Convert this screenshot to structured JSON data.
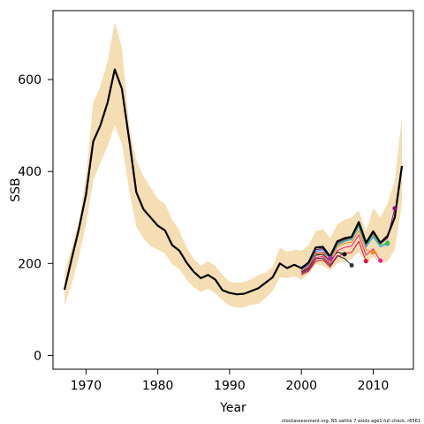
{
  "chart_data": {
    "type": "line",
    "xlabel": "Year",
    "ylabel": "SSB",
    "xlim": [
      1965.4,
      2015.6
    ],
    "ylim": [
      -30,
      750
    ],
    "x_ticks": [
      1970,
      1980,
      1990,
      2000,
      2010
    ],
    "y_ticks": [
      0,
      200,
      400,
      600
    ],
    "footnote": "stockassessment.org, NS saithe 7 exidx age1 full check, r6561",
    "band_color": "#f5deb3",
    "band": {
      "x": [
        1967,
        1968,
        1969,
        1970,
        1971,
        1972,
        1973,
        1974,
        1975,
        1976,
        1977,
        1978,
        1979,
        1980,
        1981,
        1982,
        1983,
        1984,
        1985,
        1986,
        1987,
        1988,
        1989,
        1990,
        1991,
        1992,
        1993,
        1994,
        1995,
        1996,
        1997,
        1998,
        1999,
        2000,
        2001,
        2002,
        2003,
        2004,
        2005,
        2006,
        2007,
        2008,
        2009,
        2010,
        2011,
        2012,
        2013,
        2014
      ],
      "lower": [
        108,
        155,
        215,
        285,
        380,
        420,
        455,
        500,
        460,
        360,
        280,
        255,
        238,
        230,
        222,
        198,
        188,
        165,
        148,
        138,
        145,
        135,
        120,
        108,
        104,
        105,
        110,
        112,
        125,
        140,
        170,
        168,
        172,
        165,
        178,
        198,
        195,
        185,
        200,
        205,
        210,
        225,
        200,
        215,
        200,
        205,
        230,
        330
      ],
      "upper": [
        180,
        235,
        290,
        390,
        550,
        585,
        640,
        725,
        670,
        500,
        425,
        390,
        365,
        340,
        330,
        295,
        272,
        235,
        210,
        195,
        205,
        195,
        175,
        160,
        158,
        160,
        165,
        175,
        180,
        192,
        235,
        225,
        230,
        228,
        240,
        270,
        275,
        255,
        285,
        295,
        300,
        315,
        270,
        320,
        300,
        330,
        380,
        520
      ]
    },
    "main_series": {
      "color": "#000000",
      "x": [
        1967,
        1968,
        1969,
        1970,
        1971,
        1972,
        1973,
        1974,
        1975,
        1976,
        1977,
        1978,
        1979,
        1980,
        1981,
        1982,
        1983,
        1984,
        1985,
        1986,
        1987,
        1988,
        1989,
        1990,
        1991,
        1992,
        1993,
        1994,
        1995,
        1996,
        1997,
        1998,
        1999,
        2000,
        2001,
        2002,
        2003,
        2004,
        2005,
        2006,
        2007,
        2008,
        2009,
        2010,
        2011,
        2012,
        2013,
        2014
      ],
      "values": [
        143,
        210,
        275,
        350,
        465,
        500,
        550,
        622,
        580,
        470,
        355,
        318,
        300,
        282,
        272,
        240,
        228,
        202,
        182,
        168,
        175,
        165,
        142,
        136,
        133,
        134,
        140,
        146,
        158,
        170,
        200,
        190,
        197,
        190,
        202,
        235,
        236,
        215,
        248,
        255,
        258,
        290,
        245,
        270,
        245,
        260,
        300,
        412
      ]
    },
    "retro_series": [
      {
        "color": "#333333",
        "x": [
          2000,
          2001,
          2002,
          2003,
          2004,
          2005,
          2006,
          2007
        ],
        "values": [
          178,
          186,
          210,
          212,
          196,
          217,
          211,
          196
        ],
        "end": 2007
      },
      {
        "color": "#000000",
        "x": [
          2000,
          2001,
          2002,
          2003,
          2004,
          2005,
          2006
        ],
        "values": [
          182,
          190,
          218,
          220,
          205,
          225,
          220
        ],
        "end": 2006
      },
      {
        "color": "#9932cc",
        "x": [
          2000,
          2001,
          2002,
          2003,
          2004
        ],
        "values": [
          185,
          195,
          222,
          225,
          212
        ],
        "end": 2004
      },
      {
        "color": "#dc143c",
        "x": [
          2000,
          2001,
          2002,
          2003,
          2004,
          2005,
          2006,
          2007,
          2008,
          2009
        ],
        "values": [
          175,
          183,
          205,
          208,
          192,
          215,
          222,
          224,
          248,
          205
        ],
        "end": 2009
      },
      {
        "color": "#ff1493",
        "x": [
          2000,
          2001,
          2002,
          2003,
          2004,
          2005,
          2006,
          2007,
          2008,
          2009,
          2010,
          2011
        ],
        "values": [
          180,
          188,
          212,
          216,
          200,
          228,
          235,
          238,
          262,
          218,
          232,
          206
        ],
        "end": 2011
      },
      {
        "color": "#ff8c00",
        "x": [
          2000,
          2001,
          2002,
          2003,
          2004,
          2005,
          2006,
          2007,
          2008,
          2009,
          2010
        ],
        "values": [
          184,
          193,
          220,
          224,
          206,
          236,
          244,
          246,
          272,
          230,
          224
        ],
        "end": 2010
      },
      {
        "color": "#1e90ff",
        "x": [
          2000,
          2001,
          2002,
          2003,
          2004,
          2005,
          2006,
          2007,
          2008,
          2009,
          2010,
          2011,
          2012
        ],
        "values": [
          186,
          197,
          226,
          230,
          210,
          240,
          248,
          252,
          280,
          236,
          258,
          236,
          243
        ],
        "end": 2012
      },
      {
        "color": "#32cd32",
        "x": [
          2001,
          2002,
          2003,
          2004,
          2005,
          2006,
          2007,
          2008,
          2009,
          2010,
          2011,
          2012
        ],
        "values": [
          198,
          230,
          234,
          212,
          243,
          250,
          255,
          284,
          240,
          262,
          240,
          245
        ],
        "end": 2012
      },
      {
        "color": "#8b008b",
        "x": [
          2000,
          2001,
          2002,
          2003,
          2004,
          2005,
          2006,
          2007,
          2008,
          2009,
          2010,
          2011,
          2012,
          2013
        ],
        "values": [
          188,
          200,
          230,
          232,
          214,
          245,
          252,
          256,
          287,
          242,
          266,
          243,
          255,
          320
        ],
        "end": 2013
      }
    ]
  }
}
